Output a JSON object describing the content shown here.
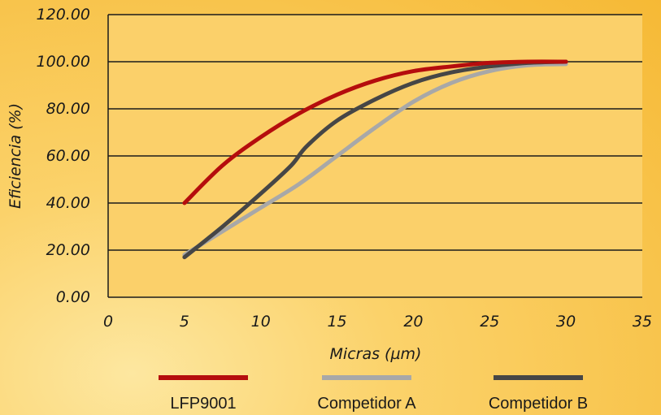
{
  "chart_data": {
    "type": "line",
    "title": "",
    "xlabel": "Micras (µm)",
    "ylabel": "Eficiencia (%)",
    "xlim": [
      0,
      35
    ],
    "ylim": [
      0,
      120
    ],
    "x_ticks": [
      "0",
      "5",
      "10",
      "15",
      "20",
      "25",
      "30",
      "35"
    ],
    "y_ticks": [
      "0.00",
      "20.00",
      "40.00",
      "60.00",
      "80.00",
      "100.00",
      "120.00"
    ],
    "grid": true,
    "legend_position": "bottom",
    "series": [
      {
        "name": "LFP9001",
        "color": "#b50d0d",
        "x": [
          5,
          7.5,
          10,
          12.5,
          15,
          17.5,
          20,
          22.5,
          25,
          27.5,
          30
        ],
        "y": [
          40,
          56,
          68,
          78,
          86,
          92,
          96,
          98,
          99.5,
          100,
          100
        ]
      },
      {
        "name": "Competidor A",
        "color": "#a8a8a8",
        "x": [
          5,
          7.5,
          10,
          12.5,
          15,
          17.5,
          20,
          22.5,
          25,
          27.5,
          30
        ],
        "y": [
          18,
          28,
          38,
          48,
          60,
          72,
          83,
          91,
          96,
          98.5,
          99
        ]
      },
      {
        "name": "Competidor B",
        "color": "#464646",
        "x": [
          5,
          7.5,
          10,
          12,
          13,
          15,
          17.5,
          20,
          22.5,
          25,
          27.5,
          30
        ],
        "y": [
          17,
          30,
          44,
          56,
          64,
          75,
          84,
          91,
          95.5,
          98,
          99.5,
          100
        ]
      }
    ]
  }
}
